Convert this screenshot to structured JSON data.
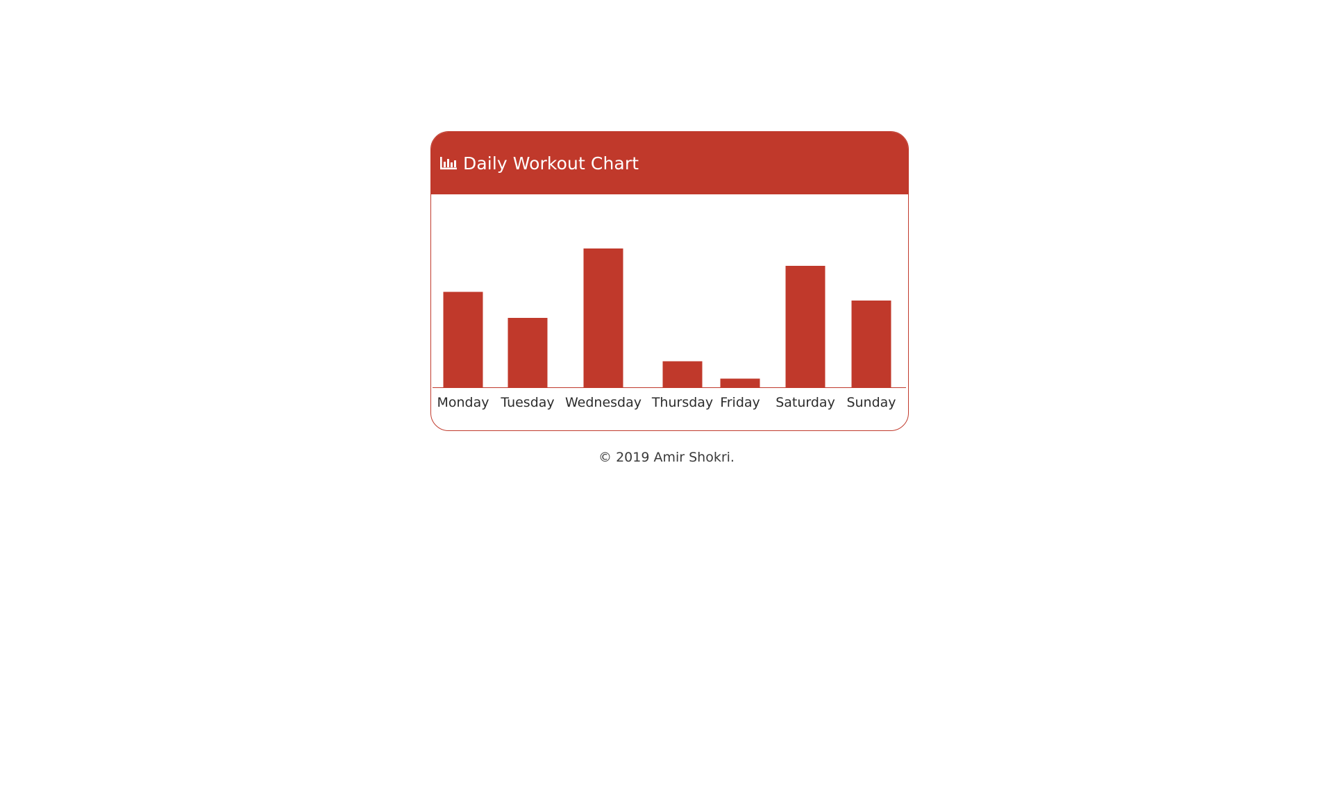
{
  "header": {
    "title": "Daily Workout Chart",
    "icon": "bar-chart-icon"
  },
  "footer": {
    "copyright": "© 2019 Amir Shokri."
  },
  "colors": {
    "accent": "#c0392b",
    "label": "#2b2b2b"
  },
  "chart_data": {
    "type": "bar",
    "categories": [
      "Monday",
      "Tuesday",
      "Wednesday",
      "Thursday",
      "Friday",
      "Saturday",
      "Sunday"
    ],
    "values": [
      55,
      40,
      80,
      15,
      5,
      70,
      50
    ],
    "ylim": [
      0,
      100
    ],
    "grid": false,
    "legend": "none"
  }
}
